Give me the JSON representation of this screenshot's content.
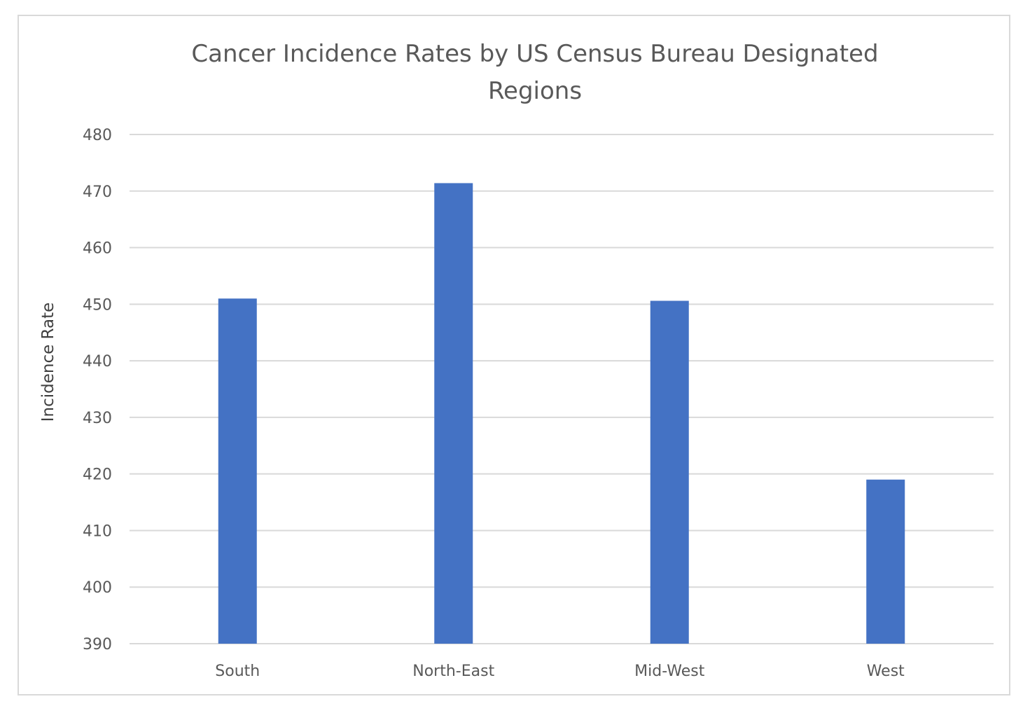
{
  "chart_data": {
    "type": "bar",
    "title_lines": [
      "Cancer Incidence Rates by US Census Bureau Designated",
      "Regions"
    ],
    "xlabel": "",
    "ylabel": "Incidence Rate",
    "categories": [
      "South",
      "North-East",
      "Mid-West",
      "West"
    ],
    "values": [
      451,
      471.4,
      450.6,
      419
    ],
    "ylim": [
      390,
      480
    ],
    "yticks": [
      480,
      470,
      460,
      450,
      440,
      430,
      420,
      410,
      400,
      390
    ],
    "grid": true,
    "legend": "none",
    "colors": {
      "bar": "#4472c4",
      "grid": "#d9d9d9",
      "text": "#595959"
    }
  }
}
